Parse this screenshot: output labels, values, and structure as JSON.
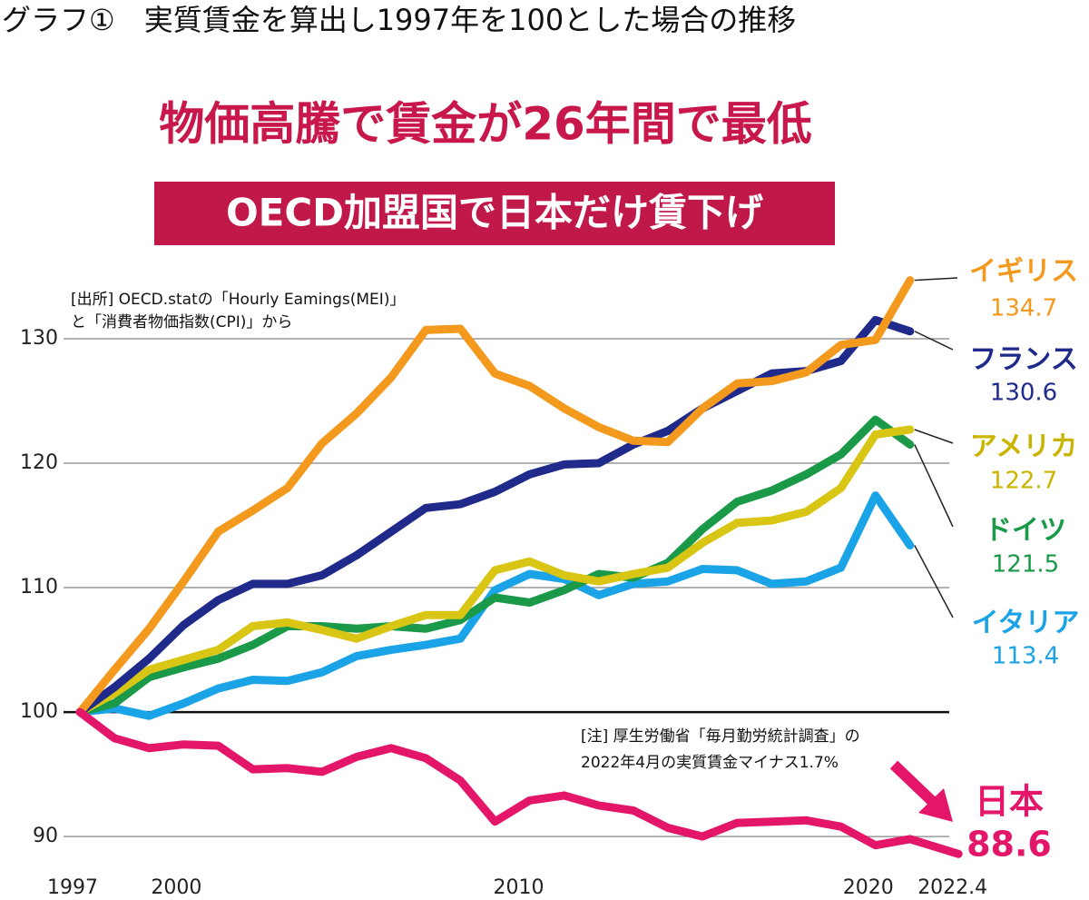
{
  "chart_data": {
    "type": "line",
    "heading": "グラフ①　実質賃金を算出し1997年を100とした場合の推移",
    "title": "物価高騰で賃金が26年間で最低",
    "subtitle": "OECD加盟国で日本だけ賃下げ",
    "source": [
      "[出所] OECD.statの「Hourly Eamings(MEI)」",
      "と「消費者物価指数(CPI)」から"
    ],
    "note": [
      "[注] 厚生労働省「毎月勤労統計調査」の",
      "2022年4月の実質賃金マイナス1.7%"
    ],
    "xlim": [
      1996.5,
      2022.5
    ],
    "xticks": [
      1997,
      2000,
      2010,
      2020,
      2022.4
    ],
    "ylim": [
      87.5,
      135.5
    ],
    "yticks": [
      90,
      100,
      110,
      120,
      130
    ],
    "grid": true,
    "series": [
      {
        "name": "イタリア",
        "color": "#1aa3e6",
        "x": [
          1997,
          1998,
          1999,
          2000,
          2001,
          2002,
          2003,
          2004,
          2005,
          2006,
          2007,
          2008,
          2009,
          2010,
          2011,
          2012,
          2013,
          2014,
          2015,
          2016,
          2017,
          2018,
          2019,
          2020,
          2021
        ],
        "values": [
          100,
          100.3,
          99.7,
          100.7,
          101.9,
          102.6,
          102.5,
          103.2,
          104.5,
          105,
          105.4,
          105.9,
          109.8,
          111.1,
          110.7,
          109.4,
          110.3,
          110.5,
          111.5,
          111.4,
          110.3,
          110.5,
          111.6,
          117.4,
          113.4
        ]
      },
      {
        "name": "ドイツ",
        "color": "#1a9a48",
        "x": [
          1997,
          1998,
          1999,
          2000,
          2001,
          2002,
          2003,
          2004,
          2005,
          2006,
          2007,
          2008,
          2009,
          2010,
          2011,
          2012,
          2013,
          2014,
          2015,
          2016,
          2017,
          2018,
          2019,
          2020,
          2021
        ],
        "values": [
          100,
          100.7,
          102.8,
          103.6,
          104.3,
          105.4,
          106.9,
          106.9,
          106.7,
          106.9,
          106.7,
          107.4,
          109.2,
          108.8,
          109.8,
          111.1,
          110.8,
          112,
          114.7,
          116.9,
          117.8,
          119.1,
          120.7,
          123.5,
          121.5
        ]
      },
      {
        "name": "アメリカ",
        "color": "#d9c614",
        "x": [
          1997,
          1998,
          1999,
          2000,
          2001,
          2002,
          2003,
          2004,
          2005,
          2006,
          2007,
          2008,
          2009,
          2010,
          2011,
          2012,
          2013,
          2014,
          2015,
          2016,
          2017,
          2018,
          2019,
          2020,
          2021
        ],
        "values": [
          100,
          101.5,
          103.4,
          104.2,
          105,
          106.9,
          107.2,
          106.6,
          105.9,
          106.9,
          107.8,
          107.8,
          111.4,
          112.1,
          111,
          110.5,
          111.1,
          111.6,
          113.6,
          115.2,
          115.4,
          116.1,
          118,
          122.3,
          122.7
        ]
      },
      {
        "name": "フランス",
        "color": "#1f2a8a",
        "x": [
          1997,
          1998,
          1999,
          2000,
          2001,
          2002,
          2003,
          2004,
          2005,
          2006,
          2007,
          2008,
          2009,
          2010,
          2011,
          2012,
          2013,
          2014,
          2015,
          2016,
          2017,
          2018,
          2019,
          2020,
          2021
        ],
        "values": [
          100,
          102,
          104.3,
          107,
          109,
          110.3,
          110.3,
          111,
          112.6,
          114.5,
          116.4,
          116.7,
          117.7,
          119.1,
          119.9,
          120,
          121.5,
          122.6,
          124.4,
          125.8,
          127.2,
          127.4,
          128.2,
          131.5,
          130.6
        ]
      },
      {
        "name": "イギリス",
        "color": "#f39a1e",
        "x": [
          1997,
          1998,
          1999,
          2000,
          2001,
          2002,
          2003,
          2004,
          2005,
          2006,
          2007,
          2008,
          2009,
          2010,
          2011,
          2012,
          2013,
          2014,
          2015,
          2016,
          2017,
          2018,
          2019,
          2020,
          2021
        ],
        "values": [
          100,
          103.4,
          106.7,
          110.5,
          114.5,
          116.2,
          118,
          121.6,
          124,
          126.9,
          130.7,
          130.8,
          127.2,
          126.2,
          124.4,
          122.9,
          121.8,
          121.7,
          124.4,
          126.4,
          126.6,
          127.3,
          129.5,
          129.9,
          134.7
        ]
      },
      {
        "name": "日本",
        "color": "#e4166a",
        "x": [
          1997,
          1998,
          1999,
          2000,
          2001,
          2002,
          2003,
          2004,
          2005,
          2006,
          2007,
          2008,
          2009,
          2010,
          2011,
          2012,
          2013,
          2014,
          2015,
          2016,
          2017,
          2018,
          2019,
          2020,
          2021,
          2022.4
        ],
        "values": [
          100,
          97.9,
          97.1,
          97.4,
          97.3,
          95.4,
          95.5,
          95.2,
          96.4,
          97.1,
          96.3,
          94.5,
          91.2,
          92.9,
          93.3,
          92.5,
          92.1,
          90.7,
          90,
          91.1,
          91.2,
          91.3,
          90.8,
          89.3,
          89.8,
          88.6
        ]
      }
    ]
  }
}
